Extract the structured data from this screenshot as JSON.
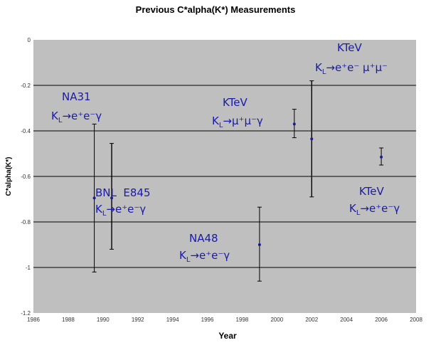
{
  "chart_data": {
    "type": "scatter",
    "title": "Previous C*alpha(K*) Measurements",
    "xlabel": "Year",
    "ylabel": "C*alpha(K*)",
    "xlim": [
      1986,
      2008
    ],
    "ylim": [
      -1.2,
      0
    ],
    "x_ticks": [
      1986,
      1988,
      1990,
      1992,
      1994,
      1996,
      1998,
      2000,
      2002,
      2004,
      2006,
      2008
    ],
    "x_tick_labels": [
      "1986",
      "1988",
      "1990",
      "1992",
      "1994",
      "1996",
      "1998",
      "2000",
      "2002",
      "2004",
      "2006",
      "2008"
    ],
    "y_ticks": [
      0,
      -0.2,
      -0.4,
      -0.6,
      -0.8,
      -1,
      -1.2
    ],
    "y_tick_labels": [
      "0",
      "-0.2",
      "-0.4",
      "-0.6",
      "-0.8",
      "-1",
      "-1.2"
    ],
    "gridlines": [
      -0.2,
      -0.4,
      -0.6,
      -0.8,
      -1.0
    ],
    "grid": true,
    "legend": "none",
    "points": [
      {
        "x": 1989.5,
        "y": -0.695,
        "ymin": -1.02,
        "ymax": -0.37
      },
      {
        "x": 1990.5,
        "y": -0.695,
        "ymin": -0.92,
        "ymax": -0.455
      },
      {
        "x": 1999.0,
        "y": -0.9,
        "ymin": -1.06,
        "ymax": -0.735
      },
      {
        "x": 2001.0,
        "y": -0.37,
        "ymin": -0.43,
        "ymax": -0.305
      },
      {
        "x": 2002.0,
        "y": -0.435,
        "ymin": -0.69,
        "ymax": -0.18
      },
      {
        "x": 2006.0,
        "y": -0.515,
        "ymin": -0.55,
        "ymax": -0.475
      }
    ],
    "annotations": [
      {
        "name": "na31",
        "line1": "NA31",
        "process": [
          "K",
          "L",
          "→e⁺e⁻γ"
        ]
      },
      {
        "name": "bnl-e845",
        "line1": "BNL  E845",
        "process": [
          "K",
          "L",
          "→e⁺e⁻γ"
        ]
      },
      {
        "name": "na48",
        "line1": "NA48",
        "process": [
          "K",
          "L",
          "→e⁺e⁻γ"
        ]
      },
      {
        "name": "ktev-mumu-gamma",
        "line1": "KTeV",
        "process": [
          "K",
          "L",
          "→μ⁺μ⁻γ"
        ]
      },
      {
        "name": "ktev-eemumu",
        "line1": "KTeV",
        "process": [
          "K",
          "L",
          "→e⁺e⁻ μ⁺μ⁻"
        ]
      },
      {
        "name": "ktev-eegamma",
        "line1": "KTeV",
        "process": [
          "K",
          "L",
          "→e⁺e⁻γ"
        ]
      }
    ]
  },
  "colors": {
    "plot_area": "#bfbfbf",
    "gridline": "#000000",
    "marker": "#1c1c9a",
    "errorbar": "#000000",
    "annotation_text": "#1a1aa8"
  }
}
